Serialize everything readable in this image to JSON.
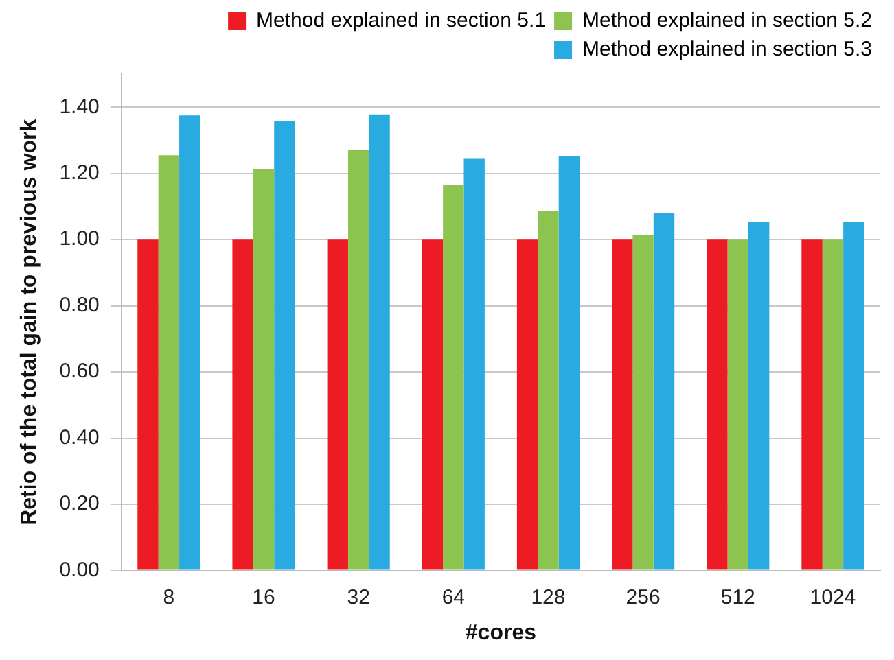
{
  "chart_data": {
    "type": "bar",
    "xlabel": "#cores",
    "ylabel": "Retio of the total gain to previous work",
    "categories": [
      "8",
      "16",
      "32",
      "64",
      "128",
      "256",
      "512",
      "1024"
    ],
    "series": [
      {
        "name": "Method explained in section 5.1",
        "color": "#ed1c24",
        "values": [
          1,
          1,
          1,
          1,
          1,
          1,
          1,
          1
        ]
      },
      {
        "name": "Method explained in section 5.2",
        "color": "#8dc450",
        "values": [
          1.255,
          1.214,
          1.271,
          1.166,
          1.087,
          1.014,
          1,
          1
        ]
      },
      {
        "name": "Method explained in section 5.3",
        "color": "#29abe2",
        "values": [
          1.375,
          1.358,
          1.378,
          1.244,
          1.253,
          1.08,
          1.054,
          1.052
        ]
      }
    ],
    "ylim": [
      0,
      1.5
    ],
    "yticks": [
      {
        "value": 0,
        "label": "0.00"
      },
      {
        "value": 0.2,
        "label": "0.20"
      },
      {
        "value": 0.4,
        "label": "0.40"
      },
      {
        "value": 0.6,
        "label": "0.60"
      },
      {
        "value": 0.8,
        "label": "0.80"
      },
      {
        "value": 1,
        "label": "1.00"
      },
      {
        "value": 1.2,
        "label": "1.20"
      },
      {
        "value": 1.4,
        "label": "1.40"
      }
    ],
    "grid": "y",
    "legend": "top right"
  }
}
